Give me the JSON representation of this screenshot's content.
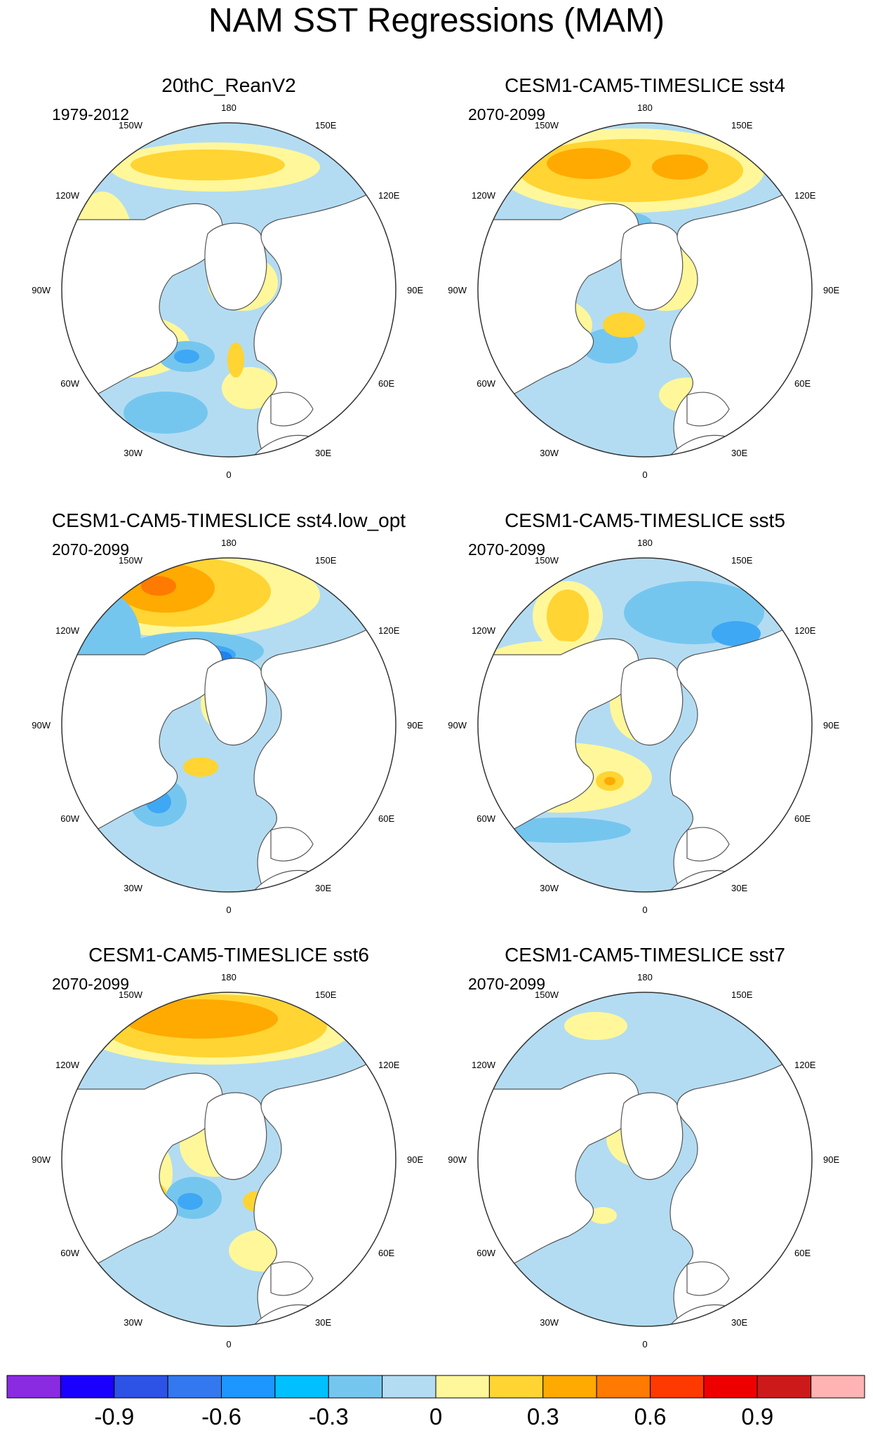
{
  "title": "NAM SST Regressions (MAM)",
  "palette": {
    "land": "#ffffff",
    "coast": "#555555",
    "rim": "#333333",
    "neg1": "#b3dcf2",
    "neg2": "#75c6ef",
    "neg3": "#3fa8f4",
    "neg4": "#1e82f0",
    "pos1": "#fff79a",
    "pos2": "#ffd433",
    "pos3": "#ffaa00",
    "pos4": "#ff7a00"
  },
  "longitude_labels": {
    "n": "180",
    "nnw": "150W",
    "nne": "150E",
    "wnw": "120W",
    "ene": "120E",
    "w": "90W",
    "e": "90E",
    "wsw": "60W",
    "ese": "60E",
    "ssw": "30W",
    "sse": "30E",
    "s": "0"
  },
  "panels": [
    {
      "title": "20thC_ReanV2",
      "period": "1979-2012",
      "pattern": "reanalysis"
    },
    {
      "title": "CESM1-CAM5-TIMESLICE sst4",
      "period": "2070-2099",
      "pattern": "sst4"
    },
    {
      "title": "CESM1-CAM5-TIMESLICE sst4.low_opt",
      "period": "2070-2099",
      "pattern": "sst4low"
    },
    {
      "title": "CESM1-CAM5-TIMESLICE sst5",
      "period": "2070-2099",
      "pattern": "sst5"
    },
    {
      "title": "CESM1-CAM5-TIMESLICE sst6",
      "period": "2070-2099",
      "pattern": "sst6"
    },
    {
      "title": "CESM1-CAM5-TIMESLICE sst7",
      "period": "2070-2099",
      "pattern": "sst7"
    }
  ],
  "colorbar": {
    "colors": [
      "#8a2be2",
      "#1a00ff",
      "#2d52e6",
      "#3378ee",
      "#1e96ff",
      "#00c0ff",
      "#75c6ef",
      "#b3dcf2",
      "#fff79a",
      "#ffd433",
      "#ffaa00",
      "#ff7a00",
      "#ff3a00",
      "#ee0000",
      "#cc1a1a",
      "#ffb3b3"
    ],
    "labels": [
      "-0.9",
      "-0.6",
      "-0.3",
      "0",
      "0.3",
      "0.6",
      "0.9"
    ]
  }
}
